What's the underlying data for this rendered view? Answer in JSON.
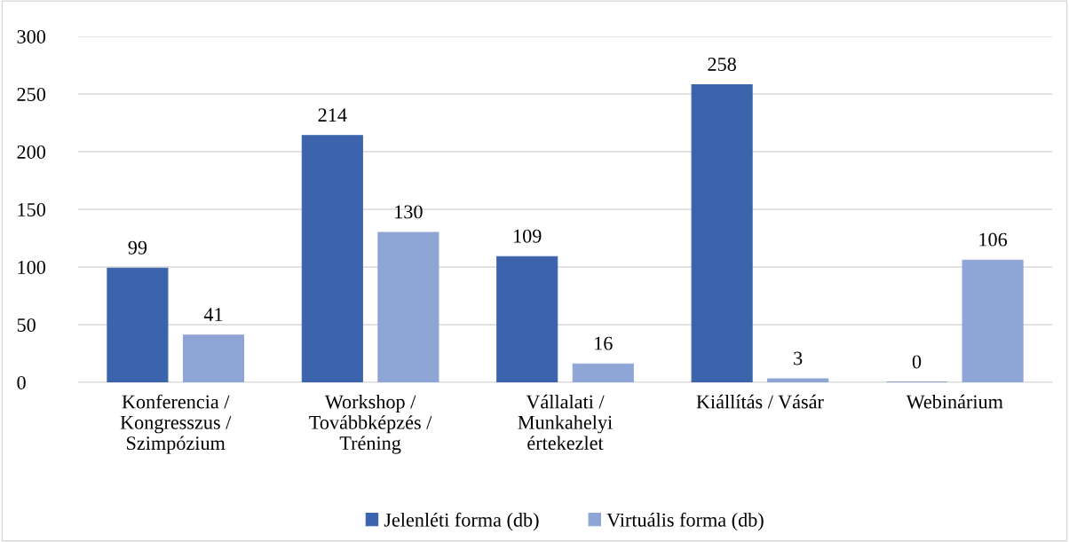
{
  "chart_data": {
    "type": "bar",
    "categories": [
      "Konferencia /\nKongresszus /\nSzimpózium",
      "Workshop /\nTovábbképzés /\nTréning",
      "Vállalati /\nMunkahelyi\nértekezlet",
      "Kiállítás / Vásár",
      "Webinárium"
    ],
    "series": [
      {
        "name": "Jelenléti forma (db)",
        "color": "#3c64ad",
        "values": [
          99,
          214,
          109,
          258,
          0
        ]
      },
      {
        "name": "Virtuális forma (db)",
        "color": "#8fa5d6",
        "values": [
          41,
          130,
          16,
          3,
          106
        ]
      }
    ],
    "ylim": [
      0,
      300
    ],
    "yticks": [
      0,
      50,
      100,
      150,
      200,
      250,
      300
    ],
    "grid": "y",
    "legend": "bottom",
    "data_labels": true
  }
}
